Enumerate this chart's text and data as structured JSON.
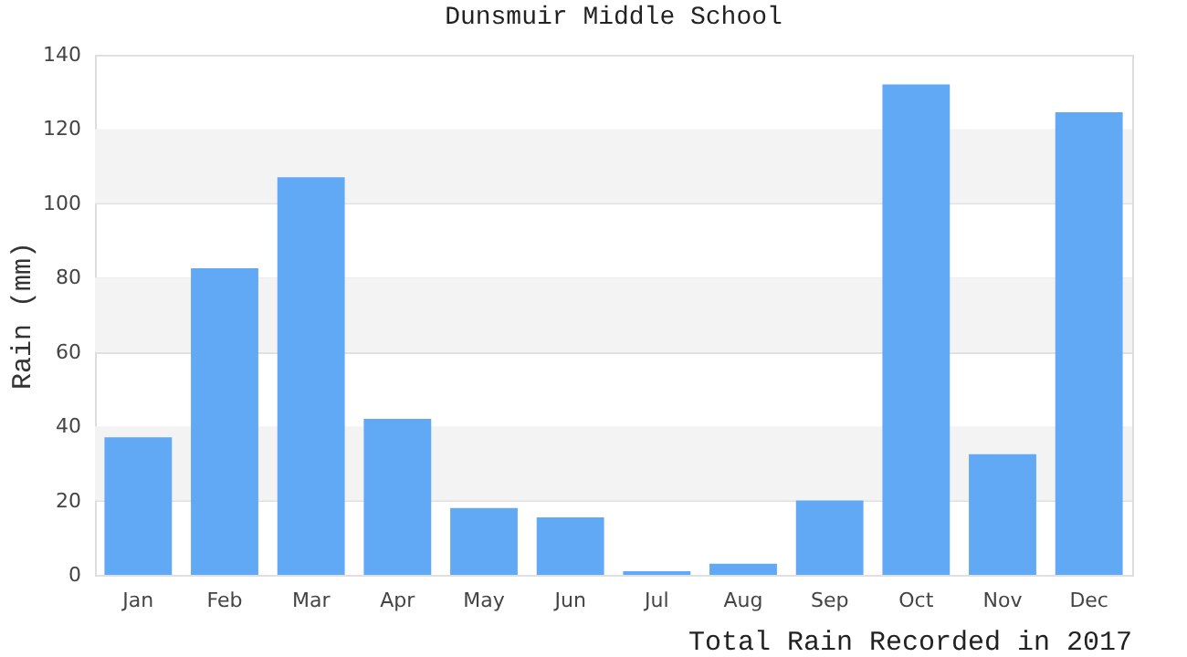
{
  "chart_data": {
    "type": "bar",
    "title": "Dunsmuir Middle School",
    "ylabel": "Rain (mm)",
    "annotations": [
      "Total Rain Recorded in 2017"
    ],
    "categories": [
      "Jan",
      "Feb",
      "Mar",
      "Apr",
      "May",
      "Jun",
      "Jul",
      "Aug",
      "Sep",
      "Oct",
      "Nov",
      "Dec"
    ],
    "values": [
      37,
      82.5,
      107,
      42,
      18,
      15.5,
      1,
      3,
      20,
      132,
      32.5,
      124.5
    ],
    "color": "#61a9f5",
    "ylim": [
      0,
      140
    ],
    "yticks": [
      0,
      20,
      40,
      60,
      80,
      100,
      120,
      140
    ],
    "grid": true,
    "bands": [
      {
        "axis": "y",
        "from": 20,
        "to": 40,
        "color": "#f3f3f3"
      },
      {
        "axis": "y",
        "from": 60,
        "to": 80,
        "color": "#f3f3f3"
      },
      {
        "axis": "y",
        "from": 100,
        "to": 120,
        "color": "#f3f3f3"
      }
    ]
  }
}
